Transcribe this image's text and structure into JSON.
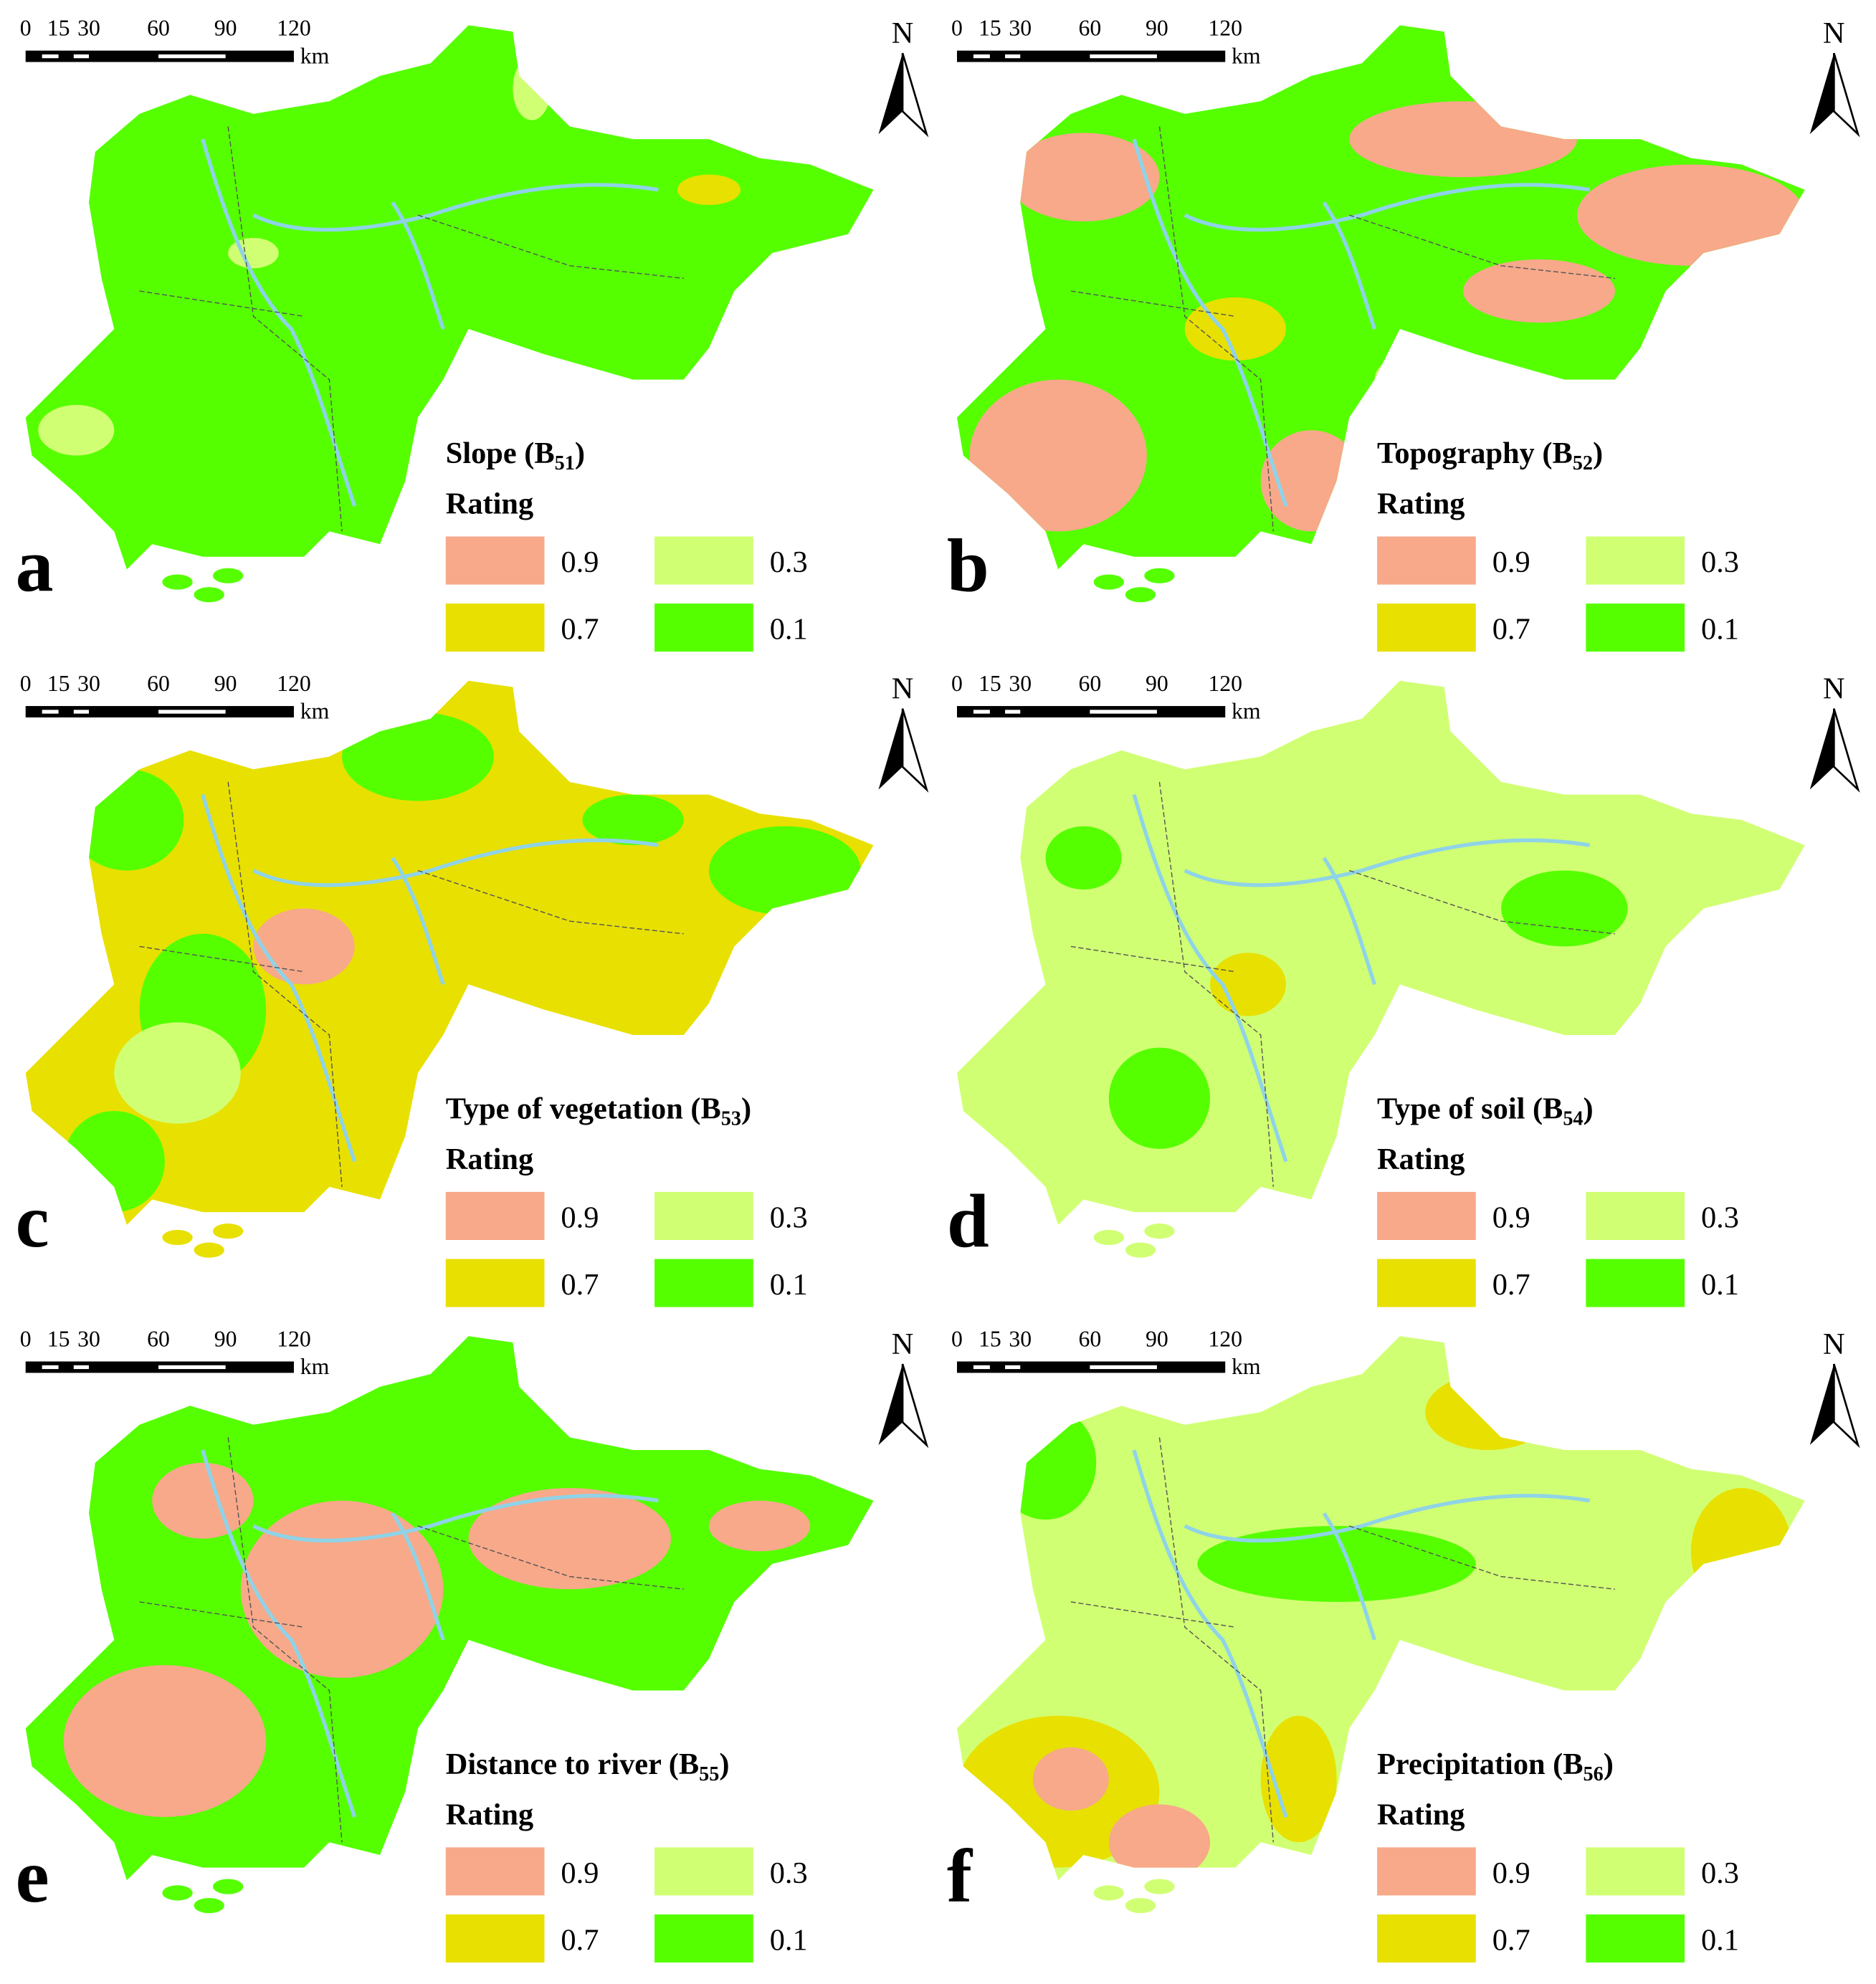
{
  "scale_bar": {
    "labels": [
      "0",
      "15",
      "30",
      "60",
      "90",
      "120"
    ],
    "unit": "km"
  },
  "north": "N",
  "legend": {
    "title": "Rating",
    "items": [
      {
        "label": "0.9",
        "color": "#f7a98a"
      },
      {
        "label": "0.7",
        "color": "#e8e000"
      },
      {
        "label": "0.3",
        "color": "#d1ff73"
      },
      {
        "label": "0.1",
        "color": "#55ff00"
      }
    ]
  },
  "panels": [
    {
      "letter": "a",
      "title": {
        "text": "Slope (B",
        "sub": "51",
        "end": ")"
      }
    },
    {
      "letter": "b",
      "title": {
        "text": "Topography (B",
        "sub": "52",
        "end": ")"
      }
    },
    {
      "letter": "c",
      "title": {
        "text": "Type of vegetation (B",
        "sub": "53",
        "end": ")"
      }
    },
    {
      "letter": "d",
      "title": {
        "text": "Type of soil (B",
        "sub": "54",
        "end": ")"
      }
    },
    {
      "letter": "e",
      "title": {
        "text": "Distance to river (B",
        "sub": "55",
        "end": ")"
      }
    },
    {
      "letter": "f",
      "title": {
        "text": "Precipitation (B",
        "sub": "56",
        "end": ")"
      }
    }
  ]
}
